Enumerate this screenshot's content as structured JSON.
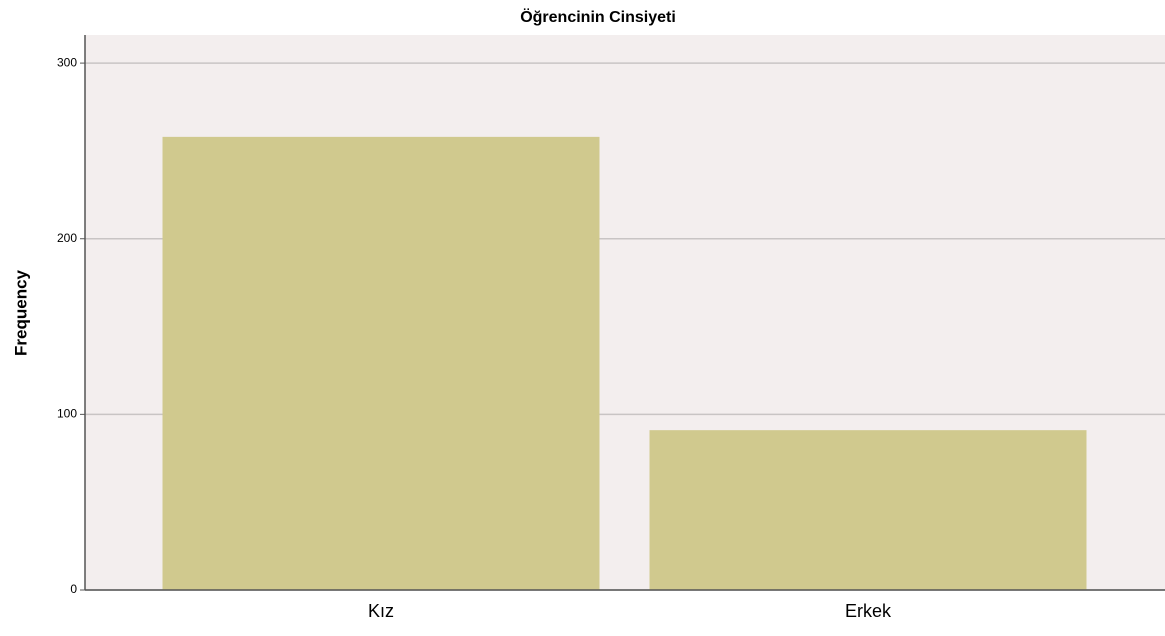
{
  "chart_data": {
    "type": "bar",
    "title": "Öğrencinin Cinsiyeti",
    "y_label": "Frequency",
    "categories": [
      "Kız",
      "Erkek"
    ],
    "values": [
      258,
      91
    ],
    "color": "#d0c98e",
    "ylim": [
      0,
      316
    ],
    "yticks": [
      0,
      100,
      200,
      300
    ],
    "grid": true
  }
}
